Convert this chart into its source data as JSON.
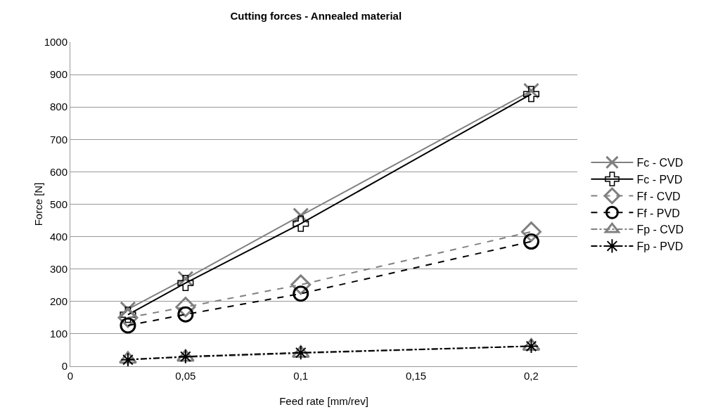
{
  "chart_data": {
    "type": "line",
    "title": "Cutting forces - Annealed material",
    "xlabel": "Feed rate [mm/rev]",
    "ylabel": "Force [N]",
    "x": [
      0.025,
      0.05,
      0.1,
      0.2
    ],
    "series": [
      {
        "name": "Fc - CVD",
        "color": "#808080",
        "values": [
          176,
          270,
          465,
          850
        ],
        "marker": "cross",
        "line_style": "solid"
      },
      {
        "name": "Fc - PVD",
        "color": "#000000",
        "values": [
          159,
          257,
          440,
          840
        ],
        "marker": "cross",
        "line_style": "solid"
      },
      {
        "name": "Ff - CVD",
        "color": "#808080",
        "values": [
          150,
          183,
          252,
          415
        ],
        "marker": "diamond",
        "line_style": "dashed"
      },
      {
        "name": "Ff - PVD",
        "color": "#000000",
        "values": [
          126,
          160,
          224,
          385
        ],
        "marker": "circle",
        "line_style": "dashed"
      },
      {
        "name": "Fp - CVD",
        "color": "#808080",
        "values": [
          22,
          28,
          40,
          62
        ],
        "marker": "triangle",
        "line_style": "dashdot"
      },
      {
        "name": "Fp - PVD",
        "color": "#000000",
        "values": [
          20,
          30,
          42,
          62
        ],
        "marker": "cross",
        "line_style": "dashdot"
      }
    ],
    "xlim": [
      0,
      0.22
    ],
    "xticks": [
      0,
      {
        "value": 0.05,
        "label": "0,05"
      },
      {
        "value": 0.1,
        "label": "0,1"
      },
      {
        "value": 0.15,
        "label": "0,15"
      },
      {
        "value": 0.2,
        "label": "0,2"
      }
    ],
    "ylim": [
      0,
      1000
    ],
    "yticks": [
      0,
      100,
      200,
      300,
      400,
      500,
      600,
      700,
      800,
      900,
      1000
    ],
    "grid": "y",
    "legend": "right"
  }
}
